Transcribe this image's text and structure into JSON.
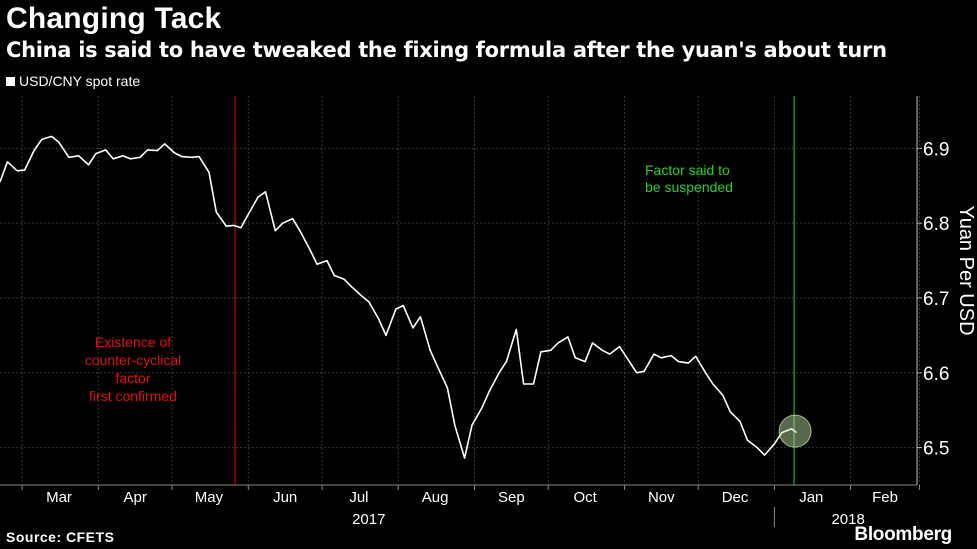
{
  "header": {
    "title": "Changing Tack",
    "subtitle": "China is said to have tweaked the fixing formula after the yuan's about turn"
  },
  "footer": {
    "source": "Source: CFETS",
    "brand": "Bloomberg"
  },
  "colors": {
    "background": "#000000",
    "line": "#ffffff",
    "red_marker": "#e01010",
    "green_marker": "#2ecc2e"
  },
  "chart_data": {
    "type": "line",
    "title": "Changing Tack",
    "ylabel": "Yuan Per USD",
    "ylim": [
      6.45,
      6.97
    ],
    "yticks": [
      6.5,
      6.6,
      6.7,
      6.8,
      6.9
    ],
    "grid": true,
    "legend": "top-left",
    "x_months": [
      "Mar",
      "Apr",
      "May",
      "Jun",
      "Jul",
      "Aug",
      "Sep",
      "Oct",
      "Nov",
      "Dec",
      "Jan",
      "Feb"
    ],
    "x_years": [
      "2017",
      "2018"
    ],
    "series": [
      {
        "name": "USD/CNY spot rate",
        "x": [
          "2017-02-20",
          "2017-02-23",
          "2017-02-27",
          "2017-03-02",
          "2017-03-06",
          "2017-03-09",
          "2017-03-13",
          "2017-03-16",
          "2017-03-20",
          "2017-03-24",
          "2017-03-28",
          "2017-03-31",
          "2017-04-04",
          "2017-04-07",
          "2017-04-11",
          "2017-04-14",
          "2017-04-18",
          "2017-04-21",
          "2017-04-25",
          "2017-04-28",
          "2017-05-02",
          "2017-05-05",
          "2017-05-09",
          "2017-05-12",
          "2017-05-16",
          "2017-05-19",
          "2017-05-23",
          "2017-05-26",
          "2017-05-29",
          "2017-06-01",
          "2017-06-05",
          "2017-06-08",
          "2017-06-12",
          "2017-06-15",
          "2017-06-19",
          "2017-06-22",
          "2017-06-26",
          "2017-06-29",
          "2017-07-03",
          "2017-07-06",
          "2017-07-10",
          "2017-07-13",
          "2017-07-17",
          "2017-07-20",
          "2017-07-24",
          "2017-07-27",
          "2017-07-31",
          "2017-08-03",
          "2017-08-07",
          "2017-08-10",
          "2017-08-14",
          "2017-08-17",
          "2017-08-21",
          "2017-08-24",
          "2017-08-28",
          "2017-08-31",
          "2017-09-04",
          "2017-09-07",
          "2017-09-11",
          "2017-09-14",
          "2017-09-18",
          "2017-09-21",
          "2017-09-25",
          "2017-09-28",
          "2017-10-02",
          "2017-10-05",
          "2017-10-09",
          "2017-10-12",
          "2017-10-16",
          "2017-10-19",
          "2017-10-23",
          "2017-10-26",
          "2017-10-30",
          "2017-11-02",
          "2017-11-06",
          "2017-11-09",
          "2017-11-13",
          "2017-11-16",
          "2017-11-20",
          "2017-11-23",
          "2017-11-27",
          "2017-11-30",
          "2017-12-04",
          "2017-12-07",
          "2017-12-11",
          "2017-12-14",
          "2017-12-18",
          "2017-12-21",
          "2017-12-25",
          "2017-12-28",
          "2018-01-01",
          "2018-01-04",
          "2018-01-08",
          "2018-01-10"
        ],
        "y": [
          6.855,
          6.882,
          6.87,
          6.871,
          6.898,
          6.912,
          6.916,
          6.908,
          6.888,
          6.89,
          6.878,
          6.893,
          6.898,
          6.886,
          6.89,
          6.886,
          6.888,
          6.898,
          6.897,
          6.906,
          6.894,
          6.889,
          6.888,
          6.889,
          6.868,
          6.815,
          6.796,
          6.797,
          6.794,
          6.812,
          6.835,
          6.842,
          6.79,
          6.8,
          6.806,
          6.79,
          6.765,
          6.745,
          6.75,
          6.73,
          6.725,
          6.715,
          6.703,
          6.695,
          6.672,
          6.65,
          6.685,
          6.69,
          6.66,
          6.675,
          6.63,
          6.608,
          6.58,
          6.53,
          6.486,
          6.53,
          6.553,
          6.575,
          6.6,
          6.615,
          6.658,
          6.585,
          6.585,
          6.628,
          6.63,
          6.64,
          6.648,
          6.62,
          6.615,
          6.64,
          6.63,
          6.625,
          6.635,
          6.62,
          6.6,
          6.602,
          6.625,
          6.62,
          6.623,
          6.615,
          6.613,
          6.622,
          6.6,
          6.585,
          6.57,
          6.548,
          6.535,
          6.51,
          6.5,
          6.49,
          6.505,
          6.52,
          6.525,
          6.52
        ]
      }
    ],
    "markers": [
      {
        "date": "2017-05-26",
        "color": "#e01010",
        "label_lines": [
          "Existence of",
          "counter-cyclical",
          "factor",
          "first confirmed"
        ]
      },
      {
        "date": "2018-01-09",
        "color": "#2ecc2e",
        "label_lines": [
          "Factor said to",
          "be suspended"
        ]
      }
    ],
    "highlight_point": {
      "date": "2018-01-09",
      "value": 6.522
    }
  }
}
